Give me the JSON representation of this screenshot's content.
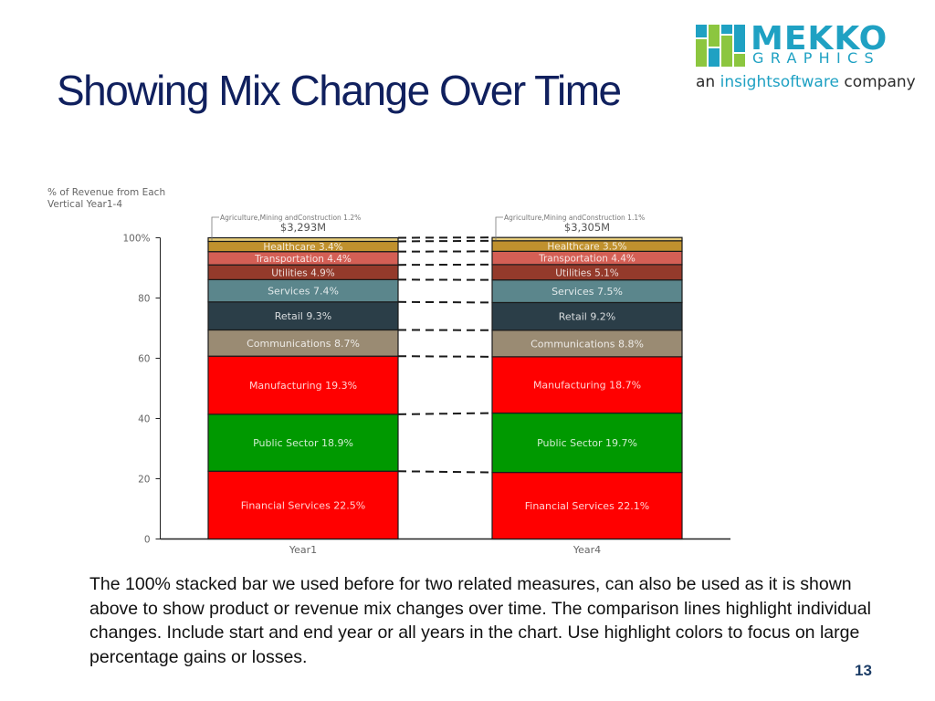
{
  "slide": {
    "title": "Showing Mix Change Over Time",
    "body": "The 100% stacked bar we used before for two related measures, can also be used as it is shown above to show product or revenue mix changes over time.  The comparison lines highlight individual changes.  Include start and end year or all years in the chart.  Use highlight colors to focus on large percentage gains or losses.",
    "page_number": "13"
  },
  "logo": {
    "brand": "MEKKO",
    "sub": "GRAPHICS",
    "tag_pre": "an ",
    "tag_highlight": "insightsoftware",
    "tag_post": " company"
  },
  "chart_data": {
    "type": "bar",
    "stacked": "100%",
    "ylabel": "% of Revenue from Each Vertical Year1-4",
    "y_ticks": [
      "0",
      "20",
      "40",
      "60",
      "80",
      "100%"
    ],
    "ylim": [
      0,
      100
    ],
    "categories": [
      "Year1",
      "Year4"
    ],
    "totals": [
      "$3,293M",
      "$3,305M"
    ],
    "series": [
      {
        "name": "Financial Services",
        "values": [
          22.5,
          22.1
        ],
        "color": "#ff0000",
        "labels": [
          "Financial Services 22.5%",
          "Financial Services 22.1%"
        ]
      },
      {
        "name": "Public Sector",
        "values": [
          18.9,
          19.7
        ],
        "color": "#009900",
        "labels": [
          "Public Sector 18.9%",
          "Public Sector 19.7%"
        ]
      },
      {
        "name": "Manufacturing",
        "values": [
          19.3,
          18.7
        ],
        "color": "#ff0000",
        "labels": [
          "Manufacturing 19.3%",
          "Manufacturing 18.7%"
        ]
      },
      {
        "name": "Communications",
        "values": [
          8.7,
          8.8
        ],
        "color": "#9a8b73",
        "labels": [
          "Communications 8.7%",
          "Communications 8.8%"
        ]
      },
      {
        "name": "Retail",
        "values": [
          9.3,
          9.2
        ],
        "color": "#2b3e48",
        "labels": [
          "Retail 9.3%",
          "Retail 9.2%"
        ]
      },
      {
        "name": "Services",
        "values": [
          7.4,
          7.5
        ],
        "color": "#5b868c",
        "labels": [
          "Services 7.4%",
          "Services 7.5%"
        ]
      },
      {
        "name": "Utilities",
        "values": [
          4.9,
          5.1
        ],
        "color": "#943a2b",
        "labels": [
          "Utilities 4.9%",
          "Utilities 5.1%"
        ]
      },
      {
        "name": "Transportation",
        "values": [
          4.4,
          4.4
        ],
        "color": "#d45f55",
        "labels": [
          "Transportation 4.4%",
          "Transportation 4.4%"
        ]
      },
      {
        "name": "Healthcare",
        "values": [
          3.4,
          3.5
        ],
        "color": "#c0912e",
        "labels": [
          "Healthcare 3.4%",
          "Healthcare 3.5%"
        ]
      },
      {
        "name": "Agriculture,Mining andConstruction",
        "values": [
          1.2,
          1.1
        ],
        "color": "#e6cc7a",
        "labels": [
          "Agriculture,Mining andConstruction 1.2%",
          "Agriculture,Mining andConstruction 1.1%"
        ]
      }
    ],
    "comparison_lines": true,
    "grid": false
  }
}
